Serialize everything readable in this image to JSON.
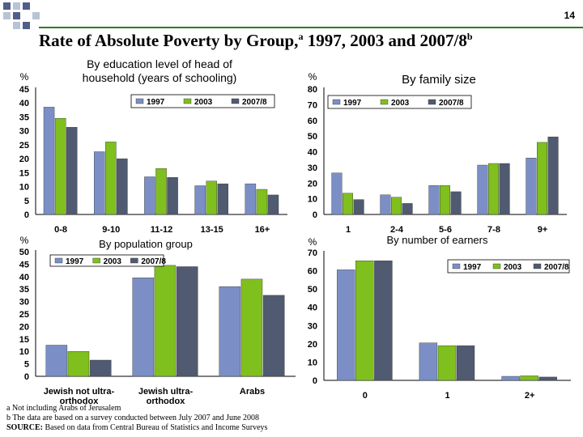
{
  "page": {
    "number": "14",
    "title": "Rate of Absolute Poverty by Group,",
    "title_sup_a": "a",
    "title_years": " 1997, 2003 and 2007/8",
    "title_sup_b": "b"
  },
  "footnotes": {
    "a": "a Not including Arabs of Jerusalem",
    "b": "b The data are based on a survey conducted between July 2007 and June 2008",
    "source_label": "SOURCE:",
    "source_text": " Based on data from Central Bureau of Statistics and Income Surveys"
  },
  "colors": {
    "1997": "#7b8fc6",
    "2003": "#7fbf1e",
    "2007/8": "#505a70"
  },
  "chart_data": [
    {
      "id": "education",
      "type": "bar",
      "title": [
        "By education level of head of",
        "household (years of schooling)"
      ],
      "ylabel": "%",
      "ylim": [
        0,
        45
      ],
      "yticks": [
        0,
        5,
        10,
        15,
        20,
        25,
        30,
        35,
        40,
        45
      ],
      "categories": [
        [
          "0-8"
        ],
        [
          "9-10"
        ],
        [
          "11-12"
        ],
        [
          "13-15"
        ],
        [
          "16+"
        ]
      ],
      "legend_position": "top",
      "series": [
        {
          "name": "1997",
          "values": [
            38.5,
            22.5,
            13.5,
            10.3,
            11
          ]
        },
        {
          "name": "2003",
          "values": [
            34.5,
            26,
            16.5,
            12,
            9
          ]
        },
        {
          "name": "2007/8",
          "values": [
            31.3,
            20,
            13.3,
            11,
            7
          ]
        }
      ]
    },
    {
      "id": "family",
      "type": "bar",
      "title": [
        "By family size"
      ],
      "ylabel": "%",
      "ylim": [
        0,
        80
      ],
      "yticks": [
        0,
        10,
        20,
        30,
        40,
        50,
        60,
        70,
        80
      ],
      "categories": [
        [
          "1"
        ],
        [
          "2-4"
        ],
        [
          "5-6"
        ],
        [
          "7-8"
        ],
        [
          "9+"
        ]
      ],
      "legend_position": "top",
      "series": [
        {
          "name": "1997",
          "values": [
            26.5,
            12.5,
            18.5,
            31.5,
            36
          ]
        },
        {
          "name": "2003",
          "values": [
            13.5,
            11,
            18.5,
            32.5,
            46
          ]
        },
        {
          "name": "2007/8",
          "values": [
            9.5,
            7,
            14.5,
            32.5,
            49.5
          ]
        }
      ]
    },
    {
      "id": "population",
      "type": "bar",
      "title": [
        "By population group"
      ],
      "ylabel": "%",
      "ylim": [
        0,
        50
      ],
      "yticks": [
        0,
        5,
        10,
        15,
        20,
        25,
        30,
        35,
        40,
        45,
        50
      ],
      "categories": [
        [
          "Jewish not ultra-",
          "orthodox"
        ],
        [
          "Jewish ultra-",
          "orthodox"
        ],
        [
          "Arabs"
        ]
      ],
      "legend_position": "top",
      "series": [
        {
          "name": "1997",
          "values": [
            12.5,
            39.5,
            36
          ]
        },
        {
          "name": "2003",
          "values": [
            10,
            44.5,
            39
          ]
        },
        {
          "name": "2007/8",
          "values": [
            6.5,
            44,
            32.5
          ]
        }
      ]
    },
    {
      "id": "earners",
      "type": "bar",
      "title": [
        "By number of earners"
      ],
      "ylabel": "%",
      "ylim": [
        0,
        70
      ],
      "yticks": [
        0,
        10,
        20,
        30,
        40,
        50,
        60,
        70
      ],
      "categories": [
        [
          "0"
        ],
        [
          "1"
        ],
        [
          "2+"
        ]
      ],
      "legend_position": "top",
      "series": [
        {
          "name": "1997",
          "values": [
            60.5,
            20.5,
            2.2
          ]
        },
        {
          "name": "2003",
          "values": [
            65.5,
            19,
            2.5
          ]
        },
        {
          "name": "2007/8",
          "values": [
            65.5,
            19,
            1.8
          ]
        }
      ]
    }
  ]
}
